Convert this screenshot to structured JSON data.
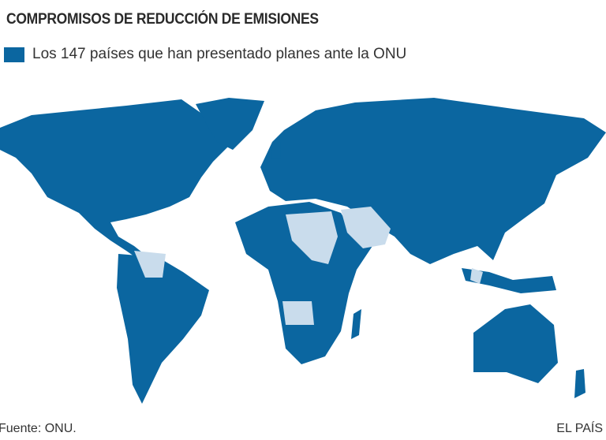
{
  "title": "COMPROMISOS DE REDUCCIÓN DE EMISIONES",
  "legend": {
    "label": "Los 147 países que han presentado planes ante la ONU",
    "color": "#0b66a0"
  },
  "colors": {
    "submitted": "#0b66a0",
    "not_submitted": "#c9dcec"
  },
  "source": "Fuente: ONU.",
  "credit": "EL PAÍS"
}
